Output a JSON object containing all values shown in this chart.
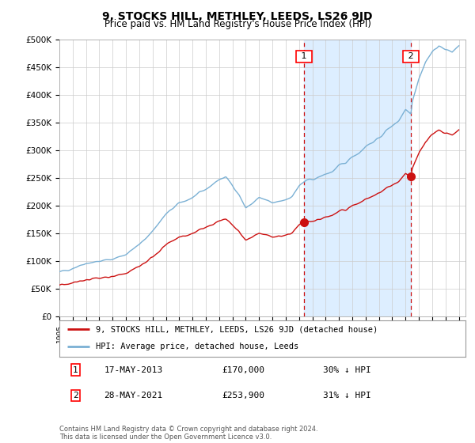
{
  "title": "9, STOCKS HILL, METHLEY, LEEDS, LS26 9JD",
  "subtitle": "Price paid vs. HM Land Registry's House Price Index (HPI)",
  "title_fontsize": 10,
  "subtitle_fontsize": 8.5,
  "ylabel_ticks": [
    "£0",
    "£50K",
    "£100K",
    "£150K",
    "£200K",
    "£250K",
    "£300K",
    "£350K",
    "£400K",
    "£450K",
    "£500K"
  ],
  "ytick_values": [
    0,
    50000,
    100000,
    150000,
    200000,
    250000,
    300000,
    350000,
    400000,
    450000,
    500000
  ],
  "ylim": [
    0,
    500000
  ],
  "hpi_color": "#7ab0d4",
  "price_color": "#cc1111",
  "shade_color": "#ddeeff",
  "marker1_date": 2013.37,
  "marker1_price": 170000,
  "marker2_date": 2021.41,
  "marker2_price": 253900,
  "legend_label1": "9, STOCKS HILL, METHLEY, LEEDS, LS26 9JD (detached house)",
  "legend_label2": "HPI: Average price, detached house, Leeds",
  "footnote": "Contains HM Land Registry data © Crown copyright and database right 2024.\nThis data is licensed under the Open Government Licence v3.0.",
  "background_color": "#ffffff",
  "plot_background": "#ffffff",
  "grid_color": "#cccccc"
}
